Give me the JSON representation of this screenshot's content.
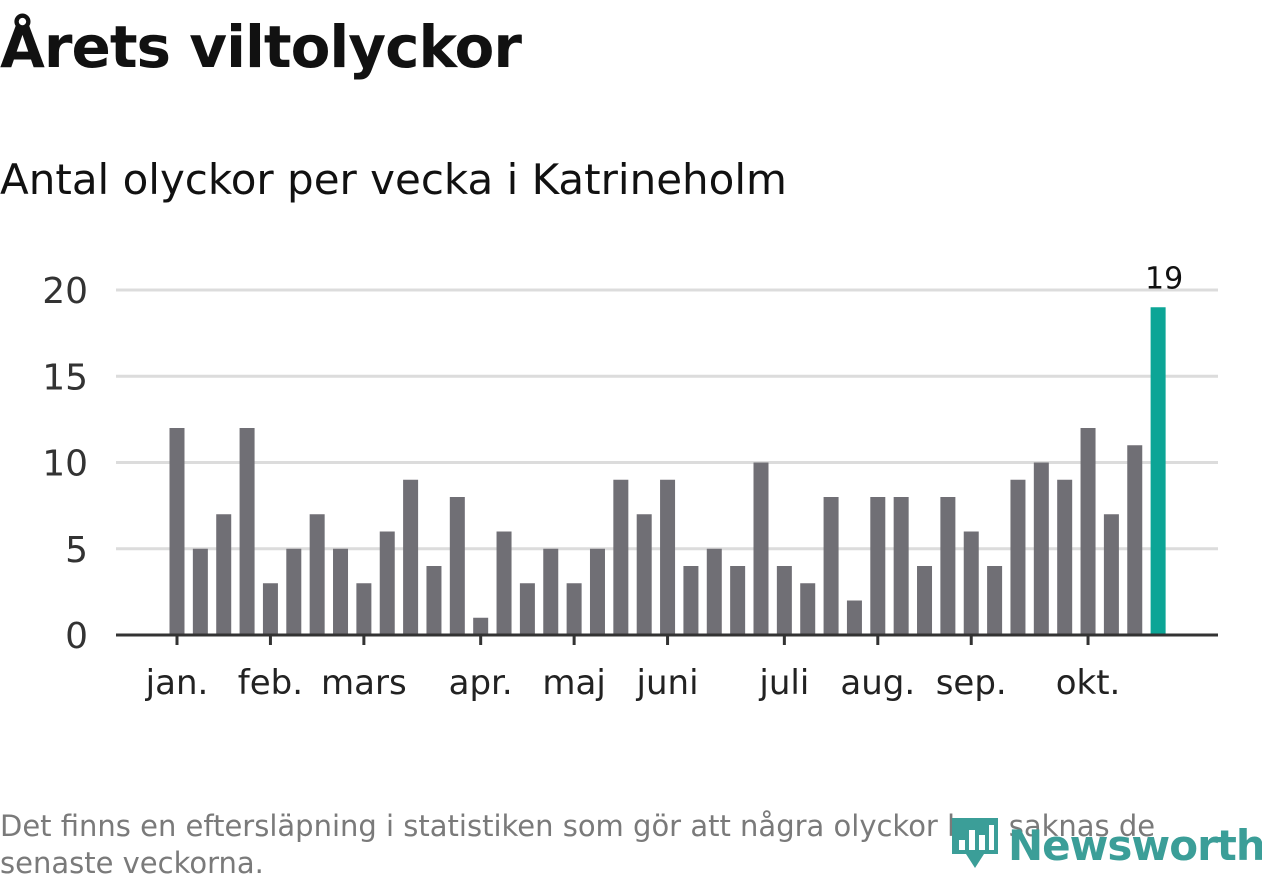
{
  "header": {
    "title": "Årets viltolyckor",
    "subtitle": "Antal olyckor per vecka i Katrineholm"
  },
  "footer": {
    "note": "Det finns en eftersläpning i statistiken som gör att några olyckor kan saknas de senaste veckorna.",
    "brand": "Newsworthy"
  },
  "colors": {
    "bar": "#706f75",
    "highlight": "#0ca596",
    "grid": "#dcdcdc",
    "axis": "#333333",
    "brand": "#3b9e98"
  },
  "chart_data": {
    "type": "bar",
    "title": "Årets viltolyckor",
    "subtitle": "Antal olyckor per vecka i Katrineholm",
    "xlabel": "",
    "ylabel": "",
    "ylim": [
      0,
      20
    ],
    "yticks": [
      0,
      5,
      10,
      15,
      20
    ],
    "grid": true,
    "weeks": [
      1,
      2,
      3,
      4,
      5,
      6,
      7,
      8,
      9,
      10,
      11,
      12,
      13,
      14,
      15,
      16,
      17,
      18,
      19,
      20,
      21,
      22,
      23,
      24,
      25,
      26,
      27,
      28,
      29,
      30,
      31,
      32,
      33,
      34,
      35,
      36,
      37,
      38,
      39,
      40,
      41,
      42,
      43
    ],
    "values": [
      12,
      5,
      7,
      12,
      3,
      5,
      7,
      5,
      3,
      6,
      9,
      4,
      8,
      1,
      6,
      3,
      5,
      3,
      5,
      9,
      7,
      9,
      4,
      5,
      4,
      10,
      4,
      3,
      8,
      2,
      8,
      8,
      4,
      8,
      6,
      4,
      9,
      10,
      9,
      12,
      7,
      11,
      19
    ],
    "highlight_index": 42,
    "highlight_label": "19",
    "month_ticks": [
      {
        "label": "jan.",
        "week": 1
      },
      {
        "label": "feb.",
        "week": 5
      },
      {
        "label": "mars",
        "week": 9
      },
      {
        "label": "apr.",
        "week": 14
      },
      {
        "label": "maj",
        "week": 18
      },
      {
        "label": "juni",
        "week": 22
      },
      {
        "label": "juli",
        "week": 27
      },
      {
        "label": "aug.",
        "week": 31
      },
      {
        "label": "sep.",
        "week": 35
      },
      {
        "label": "okt.",
        "week": 40
      }
    ]
  }
}
